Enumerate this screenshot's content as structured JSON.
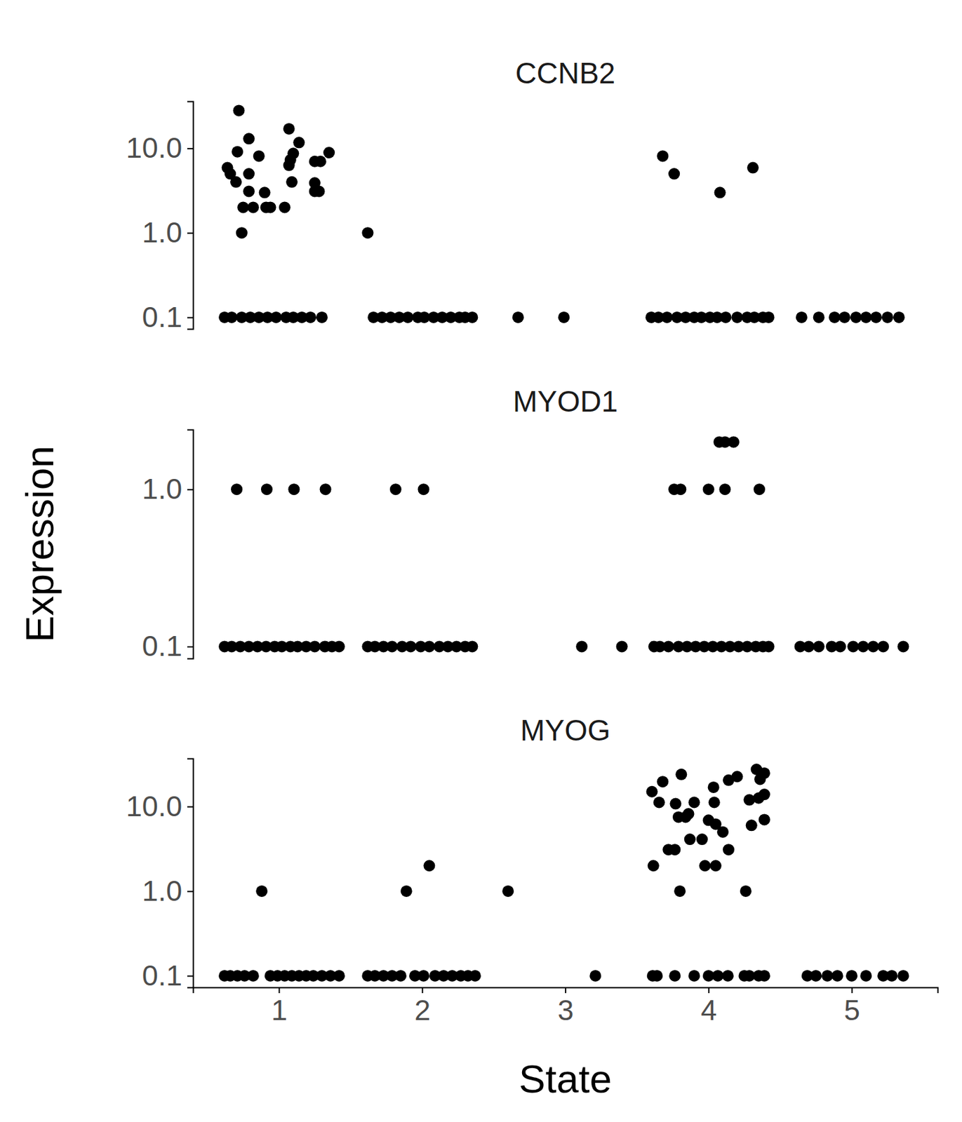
{
  "chart_data": [
    {
      "type": "scatter",
      "title": "CCNB2",
      "log": "y",
      "tick_labels": "y",
      "xlim": [
        0.4,
        5.6
      ],
      "ylim": [
        0.073,
        36
      ],
      "yticks": [
        0.1,
        {
          "value": 1,
          "label": "1.0"
        },
        {
          "value": 10,
          "label": "10.0"
        }
      ],
      "x": [
        0.72,
        0.64,
        0.66,
        0.7,
        0.71,
        0.79,
        0.86,
        0.79,
        0.79,
        0.75,
        0.82,
        0.9,
        0.91,
        0.94,
        0.74,
        1.07,
        1.1,
        1.08,
        1.07,
        1.09,
        1.04,
        1.14,
        1.25,
        1.29,
        1.25,
        1.25,
        1.28,
        1.35,
        0.62,
        0.67,
        0.74,
        0.8,
        0.86,
        0.92,
        0.98,
        1.05,
        1.1,
        1.16,
        1.22,
        1.3,
        1.62,
        1.66,
        1.72,
        1.78,
        1.84,
        1.9,
        1.97,
        2.015,
        2.08,
        2.14,
        2.2,
        2.26,
        2.3,
        2.35,
        2.67,
        2.99,
        3.68,
        3.76,
        4.08,
        4.31,
        3.6,
        3.65,
        3.71,
        3.78,
        3.84,
        3.9,
        3.95,
        4.01,
        4.06,
        4.12,
        4.2,
        4.27,
        4.32,
        4.38,
        4.42,
        4.65,
        4.77,
        4.88,
        4.95,
        5.03,
        5.1,
        5.17,
        5.25,
        5.33
      ],
      "y": [
        28,
        5.9,
        5.0,
        4.0,
        9.1,
        13,
        8.1,
        5.0,
        3.1,
        2.0,
        2.0,
        3.0,
        2.0,
        2.0,
        1.0,
        17,
        8.7,
        7.3,
        6.3,
        4.0,
        2.0,
        11.7,
        7.0,
        7.0,
        3.9,
        3.1,
        3.1,
        8.9,
        0.1,
        0.1,
        0.1,
        0.1,
        0.1,
        0.1,
        0.1,
        0.1,
        0.1,
        0.1,
        0.1,
        0.1,
        1.0,
        0.1,
        0.1,
        0.1,
        0.1,
        0.1,
        0.1,
        0.1,
        0.1,
        0.1,
        0.1,
        0.1,
        0.1,
        0.1,
        0.1,
        0.1,
        8.1,
        5.0,
        3.0,
        5.9,
        0.1,
        0.1,
        0.1,
        0.1,
        0.1,
        0.1,
        0.1,
        0.1,
        0.1,
        0.1,
        0.1,
        0.1,
        0.1,
        0.1,
        0.1,
        0.1,
        0.1,
        0.1,
        0.1,
        0.1,
        0.1,
        0.1,
        0.1,
        0.1
      ]
    },
    {
      "type": "scatter",
      "title": "MYOD1",
      "y_label": "Expression",
      "log": "y",
      "tick_labels": "y",
      "xlim": [
        0.4,
        5.6
      ],
      "ylim": [
        0.084,
        2.4
      ],
      "yticks": [
        0.1,
        {
          "value": 1,
          "label": "1.0"
        }
      ],
      "x": [
        0.705,
        0.915,
        1.105,
        1.325,
        0.62,
        0.67,
        0.73,
        0.79,
        0.85,
        0.91,
        0.97,
        1.02,
        1.08,
        1.13,
        1.19,
        1.25,
        1.32,
        1.37,
        1.42,
        1.815,
        2.01,
        1.62,
        1.67,
        1.73,
        1.79,
        1.86,
        1.92,
        1.99,
        2.05,
        2.12,
        2.18,
        2.24,
        2.3,
        2.35,
        3.115,
        3.395,
        4.075,
        4.115,
        4.175,
        3.76,
        3.805,
        4.0,
        4.115,
        4.355,
        3.62,
        3.66,
        3.72,
        3.79,
        3.85,
        3.91,
        3.97,
        4.03,
        4.09,
        4.15,
        4.21,
        4.27,
        4.33,
        4.38,
        4.42,
        4.64,
        4.7,
        4.77,
        4.86,
        4.92,
        5.01,
        5.08,
        5.15,
        5.22,
        5.36
      ],
      "y": [
        1.0,
        1.0,
        1.0,
        1.0,
        0.1,
        0.1,
        0.1,
        0.1,
        0.1,
        0.1,
        0.1,
        0.1,
        0.1,
        0.1,
        0.1,
        0.1,
        0.1,
        0.1,
        0.1,
        1.0,
        1.0,
        0.1,
        0.1,
        0.1,
        0.1,
        0.1,
        0.1,
        0.1,
        0.1,
        0.1,
        0.1,
        0.1,
        0.1,
        0.1,
        0.1,
        0.1,
        2.0,
        2.0,
        2.0,
        1.0,
        1.0,
        1.0,
        1.0,
        1.0,
        0.1,
        0.1,
        0.1,
        0.1,
        0.1,
        0.1,
        0.1,
        0.1,
        0.1,
        0.1,
        0.1,
        0.1,
        0.1,
        0.1,
        0.1,
        0.1,
        0.1,
        0.1,
        0.1,
        0.1,
        0.1,
        0.1,
        0.1,
        0.1,
        0.1
      ]
    },
    {
      "type": "scatter",
      "title": "MYOG",
      "x_label": "State",
      "log": "y",
      "xlim": [
        0.4,
        5.6
      ],
      "ylim": [
        0.073,
        37
      ],
      "xticks": [
        1,
        2,
        3,
        4,
        5
      ],
      "yticks": [
        0.1,
        {
          "value": 1,
          "label": "1.0"
        },
        {
          "value": 10,
          "label": "10.0"
        }
      ],
      "x": [
        0.88,
        0.62,
        0.66,
        0.71,
        0.76,
        0.82,
        0.94,
        0.99,
        1.04,
        1.09,
        1.14,
        1.19,
        1.24,
        1.3,
        1.36,
        1.42,
        1.89,
        2.05,
        2.6,
        1.62,
        1.67,
        1.73,
        1.79,
        1.85,
        1.95,
        2.01,
        2.09,
        2.15,
        2.21,
        2.27,
        2.32,
        2.37,
        3.21,
        3.605,
        3.68,
        3.655,
        3.81,
        3.77,
        3.79,
        3.84,
        3.86,
        3.9,
        3.72,
        3.765,
        3.87,
        3.955,
        3.615,
        3.8,
        4.035,
        4.04,
        4.0,
        4.05,
        4.1,
        3.975,
        4.05,
        4.14,
        4.14,
        4.2,
        4.26,
        4.285,
        4.3,
        4.335,
        4.36,
        4.39,
        4.35,
        4.39,
        4.39,
        3.61,
        3.64,
        3.765,
        3.9,
        4.0,
        4.065,
        4.135,
        4.25,
        4.285,
        4.35,
        4.39,
        4.69,
        4.75,
        4.83,
        4.9,
        5.0,
        5.1,
        5.22,
        5.28,
        5.36
      ],
      "y": [
        1.0,
        0.1,
        0.1,
        0.1,
        0.1,
        0.1,
        0.1,
        0.1,
        0.1,
        0.1,
        0.1,
        0.1,
        0.1,
        0.1,
        0.1,
        0.1,
        1.0,
        2.0,
        1.0,
        0.1,
        0.1,
        0.1,
        0.1,
        0.1,
        0.1,
        0.1,
        0.1,
        0.1,
        0.1,
        0.1,
        0.1,
        0.1,
        0.1,
        15,
        19.7,
        11.2,
        24,
        10.8,
        7.5,
        7.5,
        8.2,
        11.2,
        3.1,
        3.1,
        4.1,
        4.1,
        2.0,
        1.0,
        16.9,
        11.2,
        6.9,
        6.2,
        5.0,
        2.0,
        2.0,
        3.1,
        20.5,
        22.6,
        1.0,
        12,
        6.0,
        27.5,
        21,
        24.8,
        12.6,
        13.9,
        7.0,
        0.1,
        0.1,
        0.1,
        0.1,
        0.1,
        0.1,
        0.1,
        0.1,
        0.1,
        0.1,
        0.1,
        0.1,
        0.1,
        0.1,
        0.1,
        0.1,
        0.1,
        0.1,
        0.1,
        0.1
      ]
    }
  ]
}
